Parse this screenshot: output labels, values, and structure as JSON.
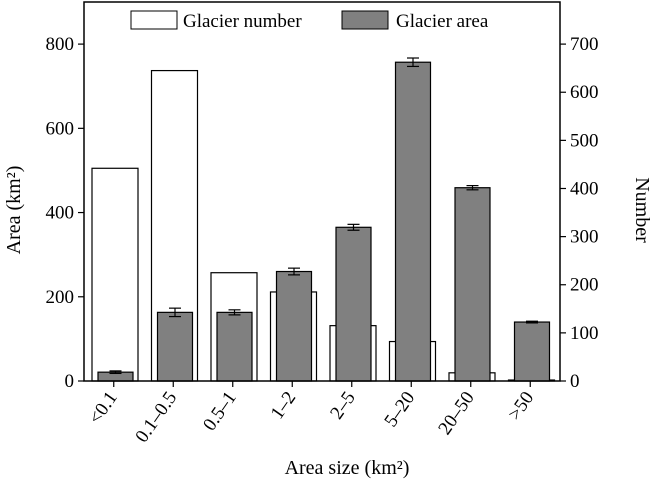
{
  "chart_data": {
    "type": "bar",
    "categories": [
      "<0.1",
      "0.1–0.5",
      "0.5–1",
      "1–2",
      "2–5",
      "5–20",
      "20–50",
      ">50"
    ],
    "series": [
      {
        "name": "Glacier number",
        "axis": "right",
        "fill": "#ffffff",
        "values": [
          442,
          645,
          225,
          185,
          115,
          82,
          17,
          2
        ]
      },
      {
        "name": "Glacier area",
        "axis": "left",
        "fill": "#808080",
        "values": [
          21,
          163,
          163,
          260,
          365,
          757,
          459,
          140
        ],
        "errors": [
          3,
          10,
          6,
          8,
          7,
          10,
          5,
          2
        ]
      }
    ],
    "xlabel": "Area size (km²)",
    "ylabel_left": "Area (km²)",
    "ylabel_right": "Number",
    "ylim_left": [
      0,
      900
    ],
    "ylim_right": [
      0,
      787.5
    ],
    "yticks_left": [
      0,
      200,
      400,
      600,
      800
    ],
    "yticks_right": [
      0,
      100,
      200,
      300,
      400,
      500,
      600,
      700
    ],
    "legend_position": "top-center",
    "grid": false
  }
}
